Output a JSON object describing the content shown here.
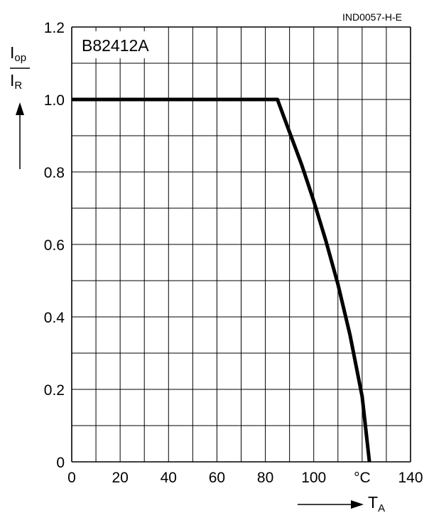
{
  "figure_code": "IND0057-H-E",
  "chart_data": {
    "type": "line",
    "model_label": "B82412A",
    "y_axis": {
      "label_top": "I",
      "label_top_sub": "op",
      "label_bottom": "I",
      "label_bottom_sub": "R",
      "ylim": [
        0,
        1.2
      ],
      "grid_step": 0.1,
      "tick_values": [
        0,
        0.2,
        0.4,
        0.6,
        0.8,
        1.0,
        1.2
      ],
      "tick_labels": [
        "0",
        "0.2",
        "0.4",
        "0.6",
        "0.8",
        "1.0",
        "1.2"
      ]
    },
    "x_axis": {
      "label": "T",
      "label_sub": "A",
      "unit": "°C",
      "xlim": [
        0,
        140
      ],
      "grid_step": 10,
      "tick_values": [
        0,
        20,
        40,
        60,
        80,
        100,
        140
      ],
      "tick_labels": [
        "0",
        "20",
        "40",
        "60",
        "80",
        "100",
        "140"
      ],
      "unit_at": 120
    },
    "grid": true,
    "series": [
      {
        "x": [
          0,
          85,
          90,
          95,
          100,
          105,
          110,
          115,
          120,
          123
        ],
        "y": [
          1.0,
          1.0,
          0.91,
          0.82,
          0.72,
          0.61,
          0.49,
          0.35,
          0.18,
          0.0
        ]
      }
    ]
  }
}
